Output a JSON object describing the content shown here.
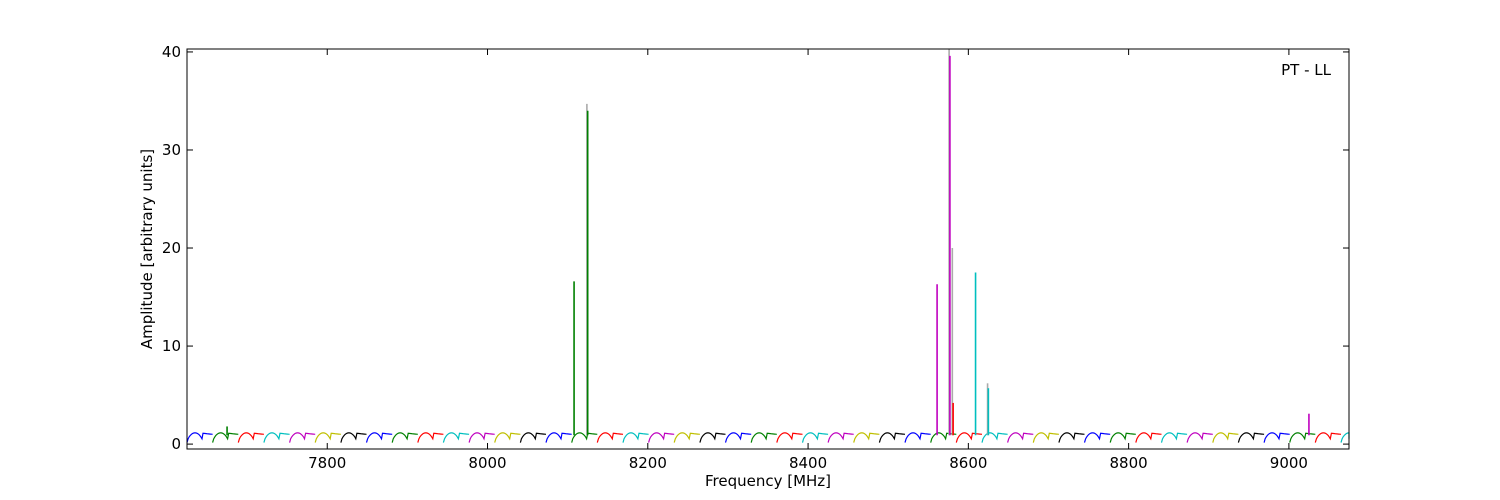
{
  "chart_data": {
    "type": "line",
    "annotation": "PT - LL",
    "xlabel": "Frequency [MHz]",
    "ylabel": "Amplitude [arbitrary units]",
    "xlim": [
      7625,
      9075
    ],
    "ylim": [
      -0.5,
      40.3
    ],
    "xticks": [
      7800,
      8000,
      8200,
      8400,
      8600,
      8800,
      9000
    ],
    "yticks": [
      0,
      10,
      20,
      30,
      40
    ],
    "grid": false,
    "legend": "none",
    "channel_width_mhz": 32,
    "channel_start_mhz": 7625,
    "channel_colors": [
      "#0000ff",
      "#008000",
      "#ff0000",
      "#00bfbf",
      "#bf00bf",
      "#bfbf00",
      "#000000"
    ],
    "spikes": [
      {
        "x": 7675,
        "y": 1.8,
        "color": "#008000"
      },
      {
        "x": 8108,
        "y": 16.6,
        "color": "#008000"
      },
      {
        "x": 8124,
        "y": 34.7,
        "color": "#aaaaaa"
      },
      {
        "x": 8125,
        "y": 34.0,
        "color": "#008000"
      },
      {
        "x": 8561,
        "y": 16.3,
        "color": "#bf00bf"
      },
      {
        "x": 8576,
        "y": 40.5,
        "color": "#aaaaaa"
      },
      {
        "x": 8577,
        "y": 39.6,
        "color": "#bf00bf"
      },
      {
        "x": 8580,
        "y": 20.0,
        "color": "#aaaaaa"
      },
      {
        "x": 8581,
        "y": 4.2,
        "color": "#ff0000"
      },
      {
        "x": 8609,
        "y": 17.5,
        "color": "#00bfbf"
      },
      {
        "x": 8624,
        "y": 6.2,
        "color": "#aaaaaa"
      },
      {
        "x": 8625,
        "y": 5.7,
        "color": "#00bfbf"
      },
      {
        "x": 9025,
        "y": 3.1,
        "color": "#bf00bf"
      }
    ]
  }
}
